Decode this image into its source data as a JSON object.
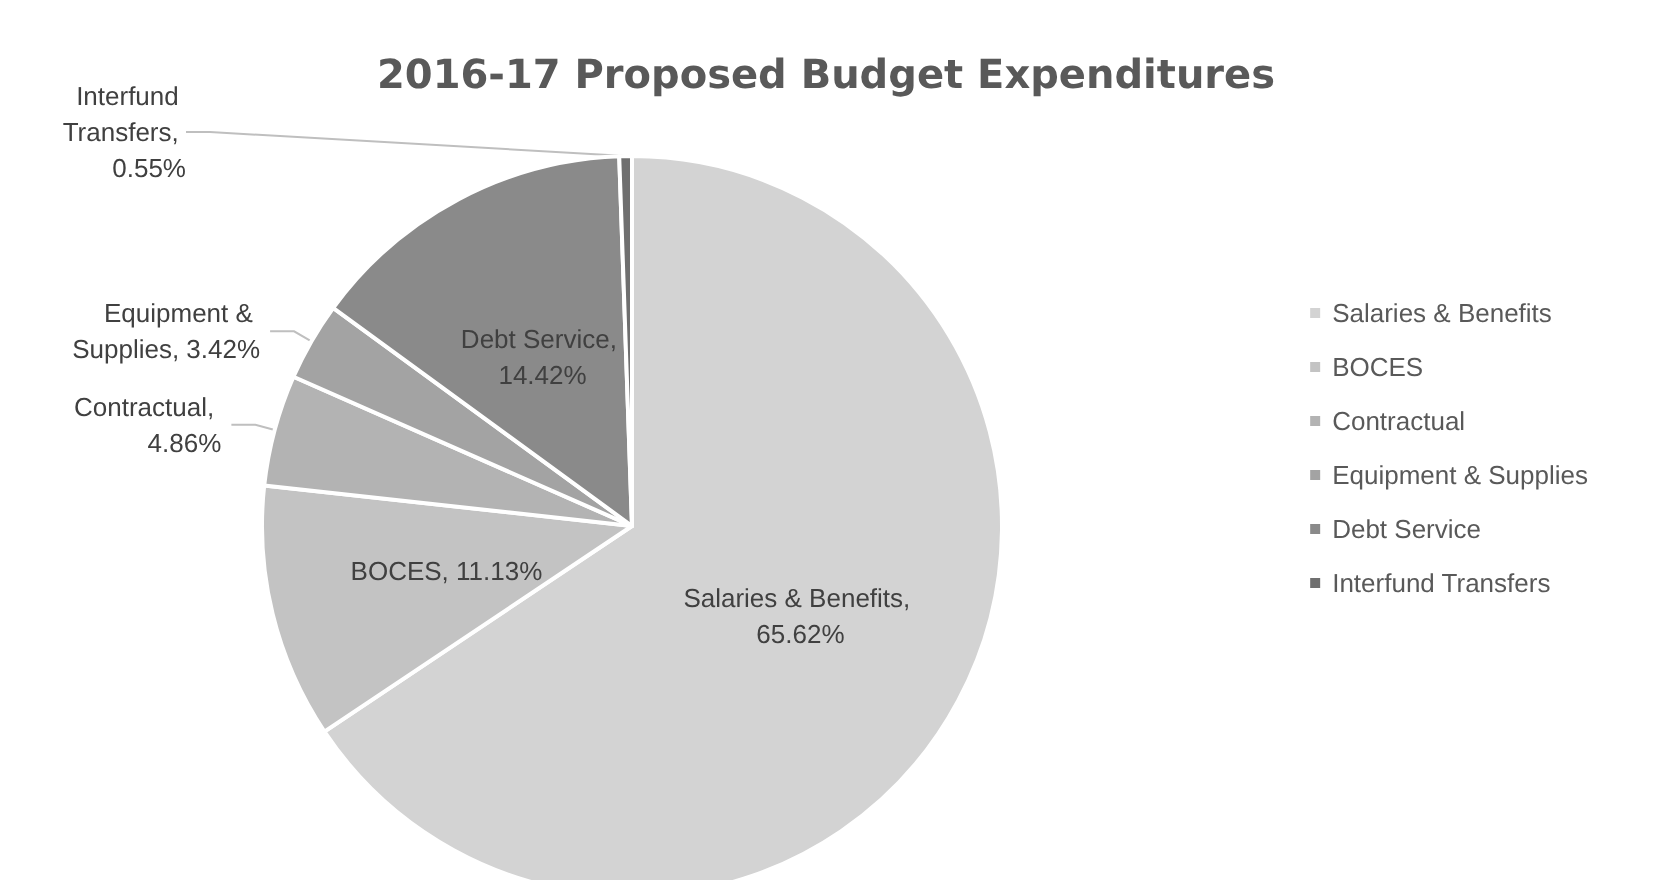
{
  "chart_data": {
    "type": "pie",
    "title": "2016-17 Proposed Budget Expenditures",
    "categories": [
      "Salaries & Benefits",
      "BOCES",
      "Contractual",
      "Equipment & Supplies",
      "Debt Service",
      "Interfund Transfers"
    ],
    "values": [
      65.62,
      11.13,
      4.86,
      3.42,
      14.42,
      0.55
    ],
    "value_labels": [
      "Salaries & Benefits, 65.62%",
      "BOCES, 11.13%",
      "Contractual, 4.86%",
      "Equipment & Supplies, 3.42%",
      "Debt Service, 14.42%",
      "Interfund Transfers, 0.55%"
    ],
    "colors": [
      "#d3d3d3",
      "#c3c3c3",
      "#b3b3b3",
      "#a3a3a3",
      "#8a8a8a",
      "#6f6f6f"
    ],
    "legend": "right"
  }
}
